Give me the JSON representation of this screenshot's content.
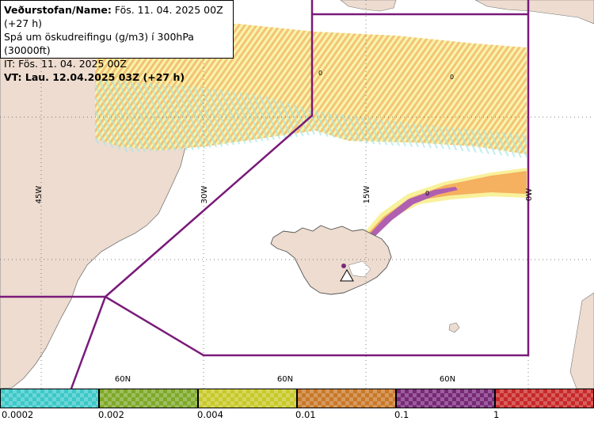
{
  "header": {
    "line1_bold": "Veðurstofan/Name:",
    "line1_rest": " Fös. 11. 04. 2025 00Z (+27 h)",
    "line2": "Spá um öskudreifingu (g/m3) í 300hPa (30000ft)",
    "line3": "IT: Fös. 11. 04. 2025 00Z",
    "line4_label": "VT:",
    "line4_value": " Lau. 12.04.2025 03Z (+27 h)"
  },
  "grid_labels": {
    "lon_45w": "45W",
    "lon_30w": "30W",
    "lon_15w": "15W",
    "lon_0w": "0W",
    "lat_60n_a": "60N",
    "lat_60n_b": "60N",
    "lat_60n_c": "60N"
  },
  "contour_labels": {
    "zero_a": "0",
    "zero_b": "0",
    "zero_c": "0"
  },
  "legend": {
    "colors": [
      "#3cc8c8",
      "#7ea828",
      "#c8c828",
      "#c87828",
      "#782878",
      "#c82828"
    ],
    "ticks": [
      "0.0002",
      "0.002",
      "0.004",
      "0.01",
      "0.1",
      "1"
    ]
  },
  "colors": {
    "land": "#eddccf",
    "boundary": "#7a1a7a",
    "ash_orange": "#f5b060",
    "ash_yellow": "#f3ee80",
    "ash_cyan": "#9ee8e8",
    "ash_purple": "#b060b0"
  }
}
